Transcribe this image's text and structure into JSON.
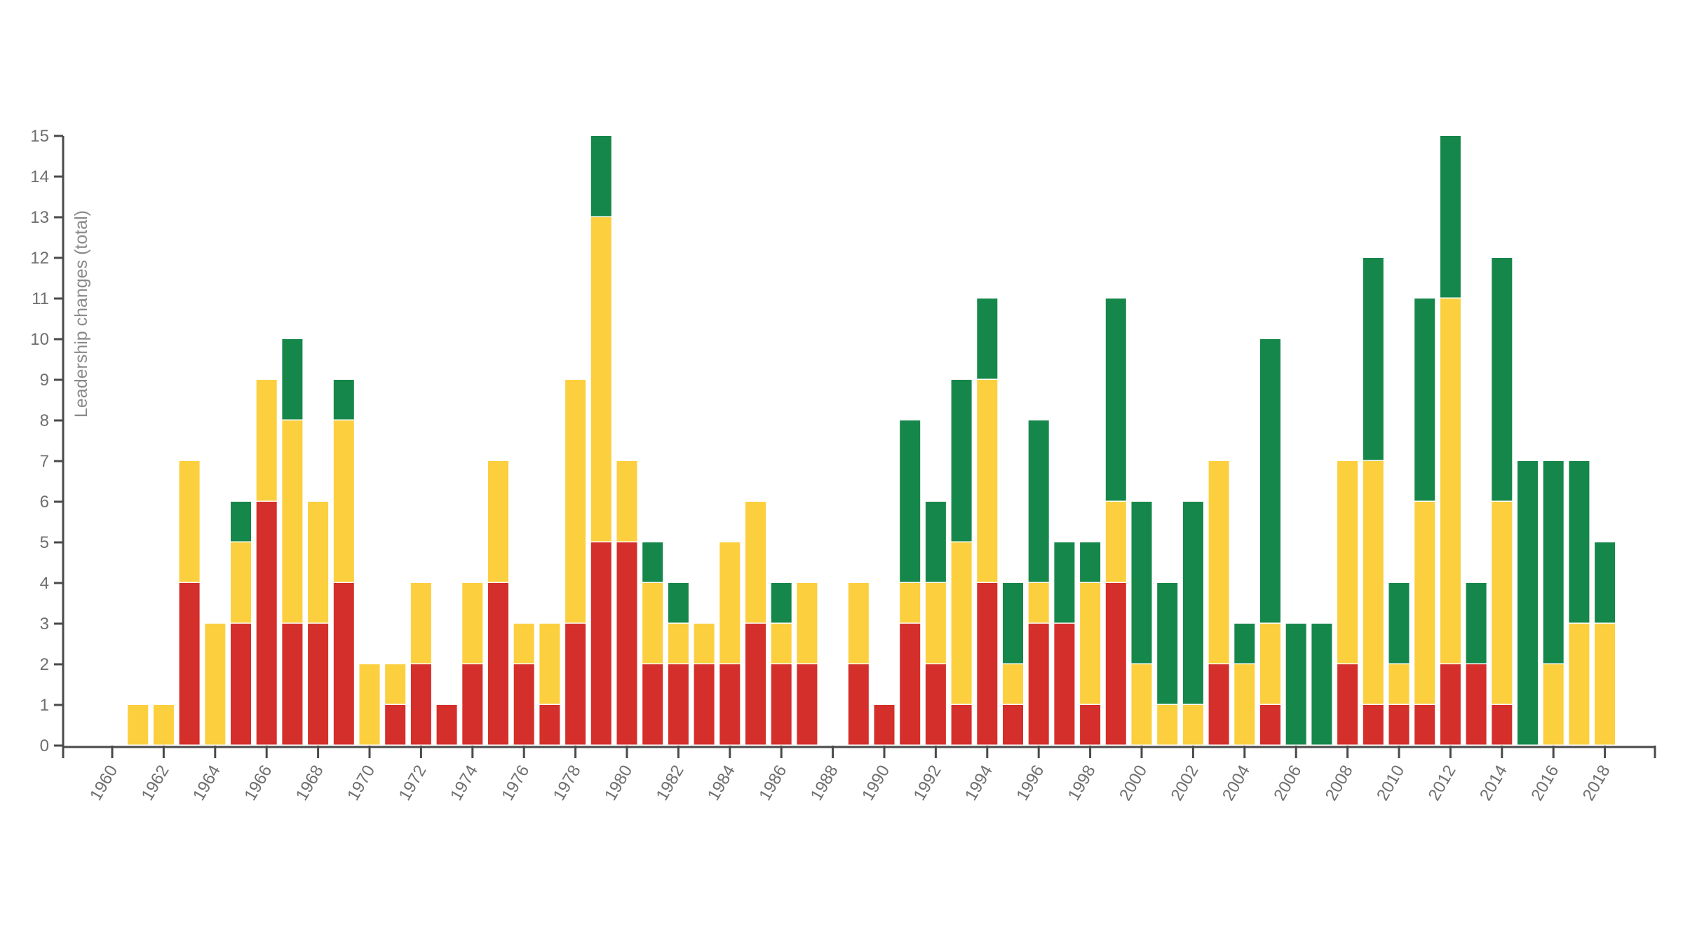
{
  "chart_data": {
    "type": "bar",
    "stacked": true,
    "title": "",
    "xlabel": "",
    "ylabel": "Leadership changes (total)",
    "ylim": [
      0,
      15
    ],
    "yticks": [
      0,
      1,
      2,
      3,
      4,
      5,
      6,
      7,
      8,
      9,
      10,
      11,
      12,
      13,
      14,
      15
    ],
    "xtick_labels": [
      "1960",
      "1962",
      "1964",
      "1966",
      "1968",
      "1970",
      "1972",
      "1974",
      "1976",
      "1978",
      "1980",
      "1982",
      "1984",
      "1986",
      "1988",
      "1990",
      "1992",
      "1994",
      "1996",
      "1998",
      "2000",
      "2002",
      "2004",
      "2006",
      "2008",
      "2010",
      "2012",
      "2014",
      "2016",
      "2018"
    ],
    "grid": false,
    "legend": null,
    "categories": [
      1960,
      1961,
      1962,
      1963,
      1964,
      1965,
      1966,
      1967,
      1968,
      1969,
      1970,
      1971,
      1972,
      1973,
      1974,
      1975,
      1976,
      1977,
      1978,
      1979,
      1980,
      1981,
      1982,
      1983,
      1984,
      1985,
      1986,
      1987,
      1988,
      1989,
      1990,
      1991,
      1992,
      1993,
      1994,
      1995,
      1996,
      1997,
      1998,
      1999,
      2000,
      2001,
      2002,
      2003,
      2004,
      2005,
      2006,
      2007,
      2008,
      2009,
      2010,
      2011,
      2012,
      2013,
      2014,
      2015,
      2016,
      2017,
      2018
    ],
    "series": [
      {
        "name": "red",
        "color": "#d42f2a",
        "values": [
          0,
          0,
          0,
          4,
          0,
          3,
          6,
          3,
          3,
          4,
          0,
          1,
          2,
          1,
          2,
          4,
          2,
          1,
          3,
          5,
          5,
          2,
          2,
          2,
          2,
          3,
          2,
          2,
          0,
          2,
          1,
          3,
          2,
          1,
          4,
          1,
          3,
          3,
          1,
          4,
          0,
          0,
          0,
          2,
          0,
          1,
          0,
          0,
          2,
          1,
          1,
          1,
          2,
          2,
          1,
          0,
          0,
          0,
          0
        ]
      },
      {
        "name": "yellow",
        "color": "#fccf3e",
        "values": [
          0,
          1,
          1,
          3,
          3,
          2,
          3,
          5,
          3,
          4,
          2,
          1,
          2,
          0,
          2,
          3,
          1,
          2,
          6,
          8,
          2,
          2,
          1,
          1,
          3,
          3,
          1,
          2,
          0,
          2,
          0,
          1,
          2,
          4,
          5,
          1,
          1,
          0,
          3,
          2,
          2,
          1,
          1,
          5,
          2,
          2,
          0,
          0,
          5,
          6,
          1,
          5,
          9,
          0,
          5,
          0,
          2,
          3,
          3
        ]
      },
      {
        "name": "green",
        "color": "#16874a",
        "values": [
          0,
          0,
          0,
          0,
          0,
          1,
          0,
          2,
          0,
          1,
          0,
          0,
          0,
          0,
          0,
          0,
          0,
          0,
          0,
          2,
          0,
          1,
          1,
          0,
          0,
          0,
          1,
          0,
          0,
          0,
          0,
          4,
          2,
          4,
          2,
          2,
          4,
          2,
          1,
          5,
          4,
          3,
          5,
          0,
          1,
          7,
          3,
          3,
          0,
          5,
          2,
          5,
          4,
          2,
          6,
          7,
          5,
          4,
          2
        ]
      }
    ],
    "totals": [
      0,
      1,
      1,
      7,
      3,
      6,
      9,
      10,
      6,
      9,
      2,
      2,
      4,
      1,
      4,
      7,
      3,
      3,
      9,
      15,
      7,
      5,
      4,
      3,
      5,
      6,
      4,
      4,
      0,
      4,
      1,
      8,
      6,
      9,
      11,
      4,
      8,
      5,
      5,
      11,
      6,
      4,
      6,
      7,
      3,
      10,
      3,
      3,
      7,
      12,
      4,
      11,
      15,
      4,
      12,
      7,
      7,
      7,
      5
    ]
  }
}
